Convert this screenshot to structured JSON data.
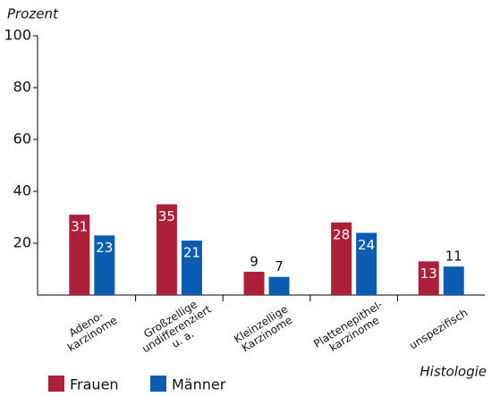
{
  "chart_data": {
    "type": "bar",
    "y_label": "Prozent",
    "x_label": "Histologie",
    "categories": [
      "Adeno-\nkarzinome",
      "Großzellige\nundifferenziert\nu. a.",
      "Kleinzellige\nKarzinome",
      "Plattenepithel-\nkarzinome",
      "unspezifisch"
    ],
    "series": [
      {
        "name": "Frauen",
        "color": "#ae1f3a",
        "values": [
          31,
          35,
          9,
          28,
          13
        ]
      },
      {
        "name": "Männer",
        "color": "#0b5db2",
        "values": [
          23,
          21,
          7,
          24,
          11
        ]
      }
    ],
    "ylim": [
      0,
      100
    ],
    "yticks": [
      20,
      40,
      60,
      80,
      100
    ]
  }
}
